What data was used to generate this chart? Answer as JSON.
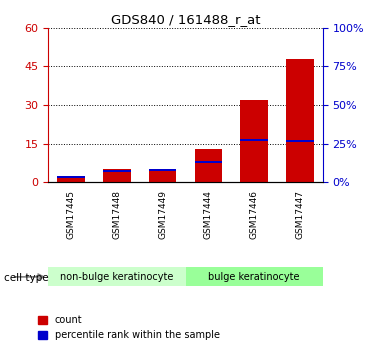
{
  "title": "GDS840 / 161488_r_at",
  "samples": [
    "GSM17445",
    "GSM17448",
    "GSM17449",
    "GSM17444",
    "GSM17446",
    "GSM17447"
  ],
  "count_values": [
    2,
    5,
    5,
    13,
    32,
    48
  ],
  "percentile_values": [
    4.2,
    8.0,
    8.5,
    14.0,
    28.0,
    27.0
  ],
  "ylim_left": [
    0,
    60
  ],
  "ylim_right": [
    0,
    100
  ],
  "yticks_left": [
    0,
    15,
    30,
    45,
    60
  ],
  "yticks_right": [
    0,
    25,
    50,
    75,
    100
  ],
  "ytick_labels_left": [
    "0",
    "15",
    "30",
    "45",
    "60"
  ],
  "ytick_labels_right": [
    "0%",
    "25%",
    "50%",
    "75%",
    "100%"
  ],
  "bar_color_red": "#cc0000",
  "bar_color_blue": "#0000cc",
  "cell_types": [
    {
      "label": "non-bulge keratinocyte",
      "color": "#ccffcc"
    },
    {
      "label": "bulge keratinocyte",
      "color": "#99ff99"
    }
  ],
  "cell_type_label": "cell type",
  "legend_red_label": "count",
  "legend_blue_label": "percentile rank within the sample",
  "bg_color": "#ffffff",
  "tick_label_color_left": "#cc0000",
  "tick_label_color_right": "#0000cc",
  "bar_width": 0.6
}
